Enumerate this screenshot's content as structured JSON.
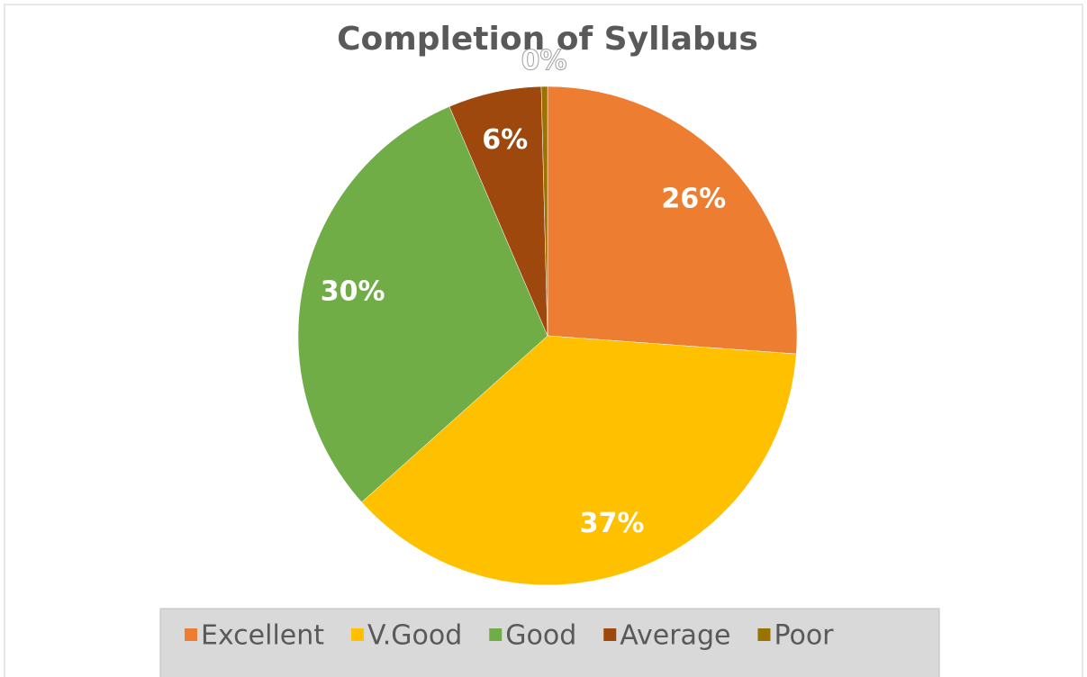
{
  "chart_data": {
    "type": "pie",
    "title": "Completion of Syllabus",
    "categories": [
      "Excellent",
      "V.Good",
      "Good",
      "Average",
      "Poor"
    ],
    "values": [
      26,
      37,
      30,
      6,
      0.4
    ],
    "value_labels": [
      "26%",
      "37%",
      "30%",
      "6%",
      "0%"
    ],
    "colors": [
      "#ED7D31",
      "#FFC000",
      "#70AD47",
      "#9E480E",
      "#997300"
    ],
    "legend": "bottom"
  }
}
